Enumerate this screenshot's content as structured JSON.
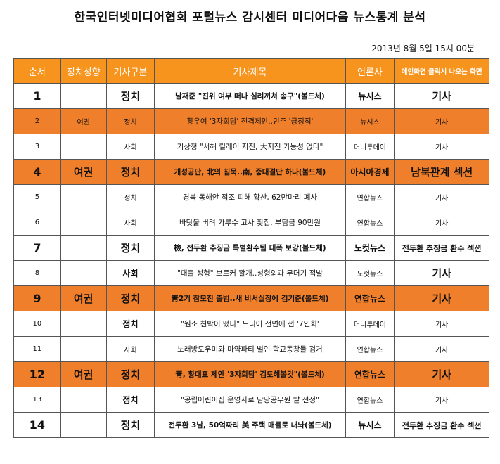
{
  "header": {
    "title": "한국인터넷미디어협회 포털뉴스 감시센터 미디어다음 뉴스통계 분석",
    "datetime": "2013년 8월 5일 15시 00분"
  },
  "columns": [
    "순서",
    "정치성향",
    "기사구분",
    "기사제목",
    "언론사",
    "메인화면 클릭시 나오는 화면"
  ],
  "rows": [
    {
      "no": "1",
      "pol": "",
      "cat": "정치",
      "title": "남재준 \"진위 여부 떠나 심려끼쳐 송구\"(볼드체)",
      "pub": "뉴시스",
      "main": "기사",
      "style": "big",
      "hl": false,
      "mainStyle": "strong"
    },
    {
      "no": "2",
      "pol": "여권",
      "cat": "정치",
      "title": "황우여 '3자회담' 전격제안..민주 '긍정적'",
      "pub": "뉴시스",
      "main": "기사",
      "style": "small",
      "hl": true,
      "mainStyle": "normal"
    },
    {
      "no": "3",
      "pol": "",
      "cat": "사회",
      "title": "기상청 \"서해 릴레이 지진, 大지진 가능성 없다\"",
      "pub": "머니투데이",
      "main": "기사",
      "style": "small",
      "hl": false,
      "mainStyle": "normal"
    },
    {
      "no": "4",
      "pol": "여권",
      "cat": "정치",
      "title": "개성공단, 北의 침묵..南, 중대결단 하나(볼드체)",
      "pub": "아시아경제",
      "main": "남북관계 섹션",
      "style": "big",
      "hl": true,
      "mainStyle": "mid"
    },
    {
      "no": "5",
      "pol": "",
      "cat": "정치",
      "title": "경북 동해안 적조 피해 확산, 62만마리 폐사",
      "pub": "연합뉴스",
      "main": "기사",
      "style": "small",
      "hl": false,
      "mainStyle": "normal"
    },
    {
      "no": "6",
      "pol": "",
      "cat": "사회",
      "title": "바닷물 버려 가루수 고사 횟집, 부담금 90만원",
      "pub": "연합뉴스",
      "main": "기사",
      "style": "small",
      "hl": false,
      "mainStyle": "normal"
    },
    {
      "no": "7",
      "pol": "",
      "cat": "정치",
      "title": "檢, 전두환 추징금 특별환수팀 대폭 보강(볼드체)",
      "pub": "노컷뉴스",
      "main": "전두환 추징금 환수 섹션",
      "style": "big",
      "hl": false,
      "mainStyle": "mid"
    },
    {
      "no": "8",
      "pol": "",
      "cat": "사회",
      "title": "\"대출 성형\" 브로커 활개..성형외과 무더기 적발",
      "pub": "노컷뉴스",
      "main": "기사",
      "style": "small",
      "hl": false,
      "mainStyle": "strong",
      "catBold": true
    },
    {
      "no": "9",
      "pol": "여권",
      "cat": "정치",
      "title": "靑2기 참모진 출범..새 비서실장에 김기춘(볼드체)",
      "pub": "연합뉴스",
      "main": "기사",
      "style": "big",
      "hl": true,
      "mainStyle": "strong"
    },
    {
      "no": "10",
      "pol": "",
      "cat": "정치",
      "title": "\"원조 친박이 떴다\" 드디어 전면에 선 '7인회'",
      "pub": "머니투데이",
      "main": "기사",
      "style": "small",
      "hl": false,
      "mainStyle": "normal",
      "catBold": true
    },
    {
      "no": "11",
      "pol": "",
      "cat": "사회",
      "title": "노래방도우미와 마약파티 벌인 학교동창들 검거",
      "pub": "연합뉴스",
      "main": "기사",
      "style": "small",
      "hl": false,
      "mainStyle": "normal"
    },
    {
      "no": "12",
      "pol": "여권",
      "cat": "정치",
      "title": "靑, 황대표 제안 '3자회담' 검토해볼것\"(볼드체)",
      "pub": "연합뉴스",
      "main": "기사",
      "style": "big",
      "hl": true,
      "mainStyle": "strong"
    },
    {
      "no": "13",
      "pol": "",
      "cat": "정치",
      "title": "\"공립어린이집 운영자로 담당공무원 딸 선정\"",
      "pub": "연합뉴스",
      "main": "기사",
      "style": "small",
      "hl": false,
      "mainStyle": "normal",
      "catBold": true
    },
    {
      "no": "14",
      "pol": "",
      "cat": "정치",
      "title": "전두환 3남, 50억짜리 美 주택 매물로 내놔(볼드체)",
      "pub": "뉴시스",
      "main": "전두환 추징금 환수 섹션",
      "style": "big",
      "hl": false,
      "mainStyle": "mid"
    }
  ],
  "colors": {
    "highlight": "#f07f2b",
    "header": "#f7941d"
  }
}
